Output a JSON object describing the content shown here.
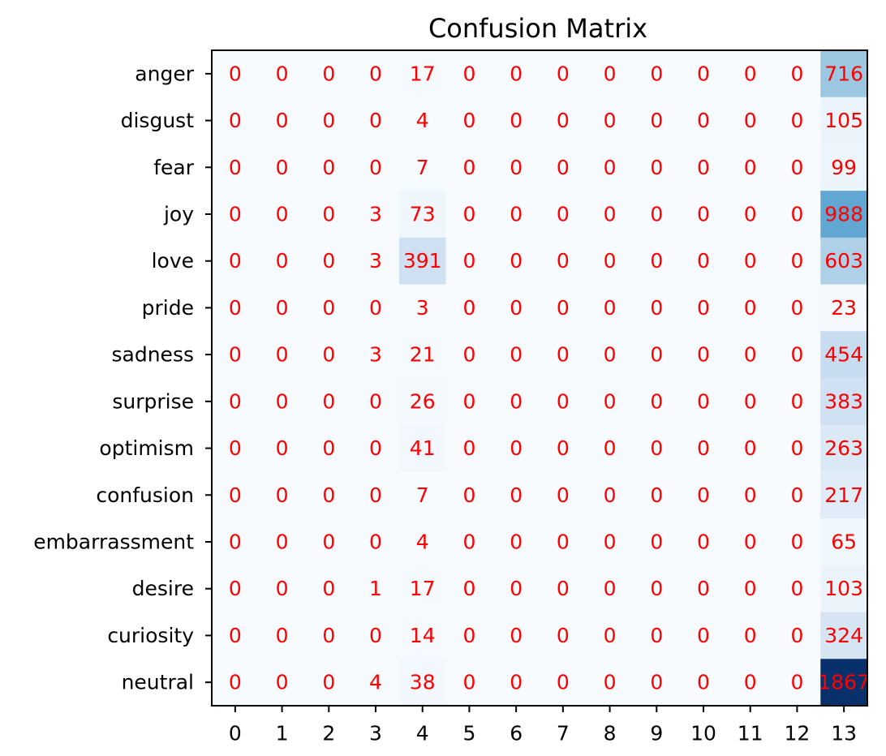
{
  "chart_data": {
    "type": "heatmap",
    "title": "Confusion Matrix",
    "xlabel": "",
    "ylabel": "",
    "x_categories": [
      "0",
      "1",
      "2",
      "3",
      "4",
      "5",
      "6",
      "7",
      "8",
      "9",
      "10",
      "11",
      "12",
      "13"
    ],
    "y_categories": [
      "anger",
      "disgust",
      "fear",
      "joy",
      "love",
      "pride",
      "sadness",
      "surprise",
      "optimism",
      "confusion",
      "embarrassment",
      "desire",
      "curiosity",
      "neutral"
    ],
    "values": [
      [
        0,
        0,
        0,
        0,
        17,
        0,
        0,
        0,
        0,
        0,
        0,
        0,
        0,
        716
      ],
      [
        0,
        0,
        0,
        0,
        4,
        0,
        0,
        0,
        0,
        0,
        0,
        0,
        0,
        105
      ],
      [
        0,
        0,
        0,
        0,
        7,
        0,
        0,
        0,
        0,
        0,
        0,
        0,
        0,
        99
      ],
      [
        0,
        0,
        0,
        3,
        73,
        0,
        0,
        0,
        0,
        0,
        0,
        0,
        0,
        988
      ],
      [
        0,
        0,
        0,
        3,
        391,
        0,
        0,
        0,
        0,
        0,
        0,
        0,
        0,
        603
      ],
      [
        0,
        0,
        0,
        0,
        3,
        0,
        0,
        0,
        0,
        0,
        0,
        0,
        0,
        23
      ],
      [
        0,
        0,
        0,
        3,
        21,
        0,
        0,
        0,
        0,
        0,
        0,
        0,
        0,
        454
      ],
      [
        0,
        0,
        0,
        0,
        26,
        0,
        0,
        0,
        0,
        0,
        0,
        0,
        0,
        383
      ],
      [
        0,
        0,
        0,
        0,
        41,
        0,
        0,
        0,
        0,
        0,
        0,
        0,
        0,
        263
      ],
      [
        0,
        0,
        0,
        0,
        7,
        0,
        0,
        0,
        0,
        0,
        0,
        0,
        0,
        217
      ],
      [
        0,
        0,
        0,
        0,
        4,
        0,
        0,
        0,
        0,
        0,
        0,
        0,
        0,
        65
      ],
      [
        0,
        0,
        0,
        1,
        17,
        0,
        0,
        0,
        0,
        0,
        0,
        0,
        0,
        103
      ],
      [
        0,
        0,
        0,
        0,
        14,
        0,
        0,
        0,
        0,
        0,
        0,
        0,
        0,
        324
      ],
      [
        0,
        0,
        0,
        4,
        38,
        0,
        0,
        0,
        0,
        0,
        0,
        0,
        0,
        1867
      ]
    ],
    "colormap": "Blues",
    "value_range": [
      0,
      1867
    ],
    "cell_label_color": "#ff0000",
    "grid": false,
    "legend": "none"
  }
}
